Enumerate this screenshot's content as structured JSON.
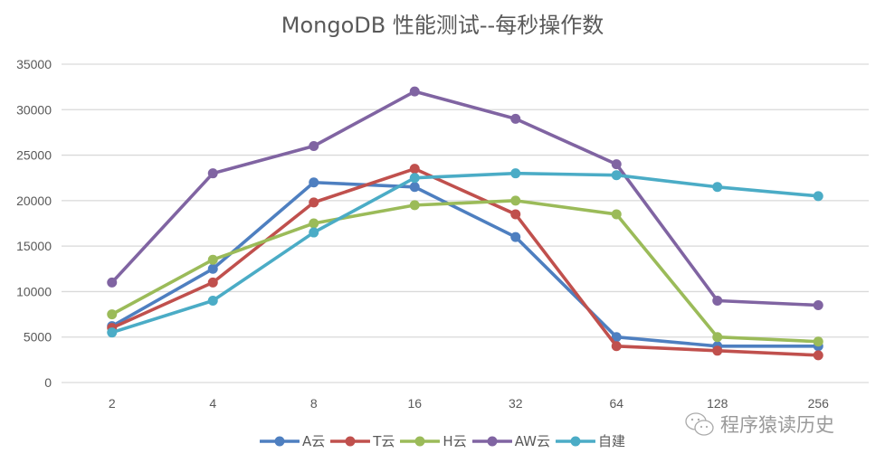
{
  "chart_data": {
    "type": "line",
    "title": "MongoDB 性能测试--每秒操作数",
    "xlabel": "",
    "ylabel": "",
    "categories": [
      "2",
      "4",
      "8",
      "16",
      "32",
      "64",
      "128",
      "256"
    ],
    "ylim": [
      0,
      35000
    ],
    "yticks": [
      "0",
      "5000",
      "10000",
      "15000",
      "20000",
      "25000",
      "30000",
      "35000"
    ],
    "grid": true,
    "legend_position": "bottom",
    "series": [
      {
        "name": "A云",
        "color": "#4e7fc0",
        "values": [
          6200,
          12500,
          22000,
          21500,
          16000,
          5000,
          4000,
          4000
        ]
      },
      {
        "name": "T云",
        "color": "#c0504d",
        "values": [
          6000,
          11000,
          19800,
          23500,
          18500,
          4000,
          3500,
          3000
        ]
      },
      {
        "name": "H云",
        "color": "#9bbb59",
        "values": [
          7500,
          13500,
          17500,
          19500,
          20000,
          18500,
          5000,
          4500
        ]
      },
      {
        "name": "AW云",
        "color": "#8064a2",
        "values": [
          11000,
          23000,
          26000,
          32000,
          29000,
          24000,
          9000,
          8500
        ]
      },
      {
        "name": "自建",
        "color": "#4bacc6",
        "values": [
          5500,
          9000,
          16500,
          22500,
          23000,
          22800,
          21500,
          20500
        ]
      }
    ]
  },
  "watermark": {
    "icon": "wechat-icon",
    "text": "程序猿读历史"
  }
}
